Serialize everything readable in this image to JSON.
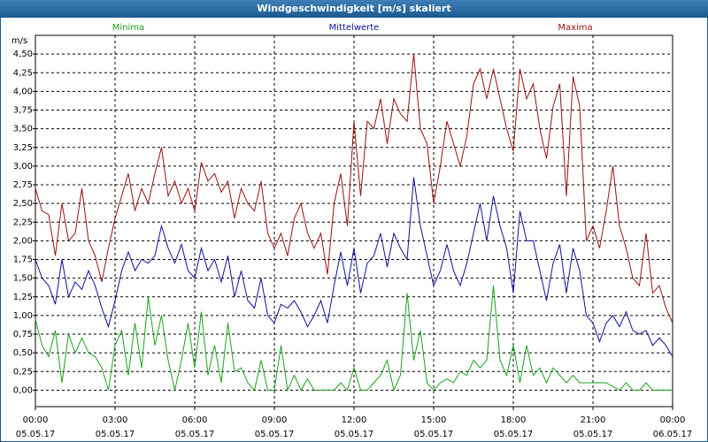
{
  "chart_data": {
    "type": "line",
    "title": "Windgeschwindigkeit [m/s] skaliert",
    "y_label": "m/s",
    "grid": true,
    "xlim": [
      0,
      24
    ],
    "xticks": [
      {
        "value": 0,
        "label": "00:00",
        "date": "05.05.17"
      },
      {
        "value": 3,
        "label": "03:00",
        "date": "05.05.17"
      },
      {
        "value": 6,
        "label": "06:00",
        "date": "05.05.17"
      },
      {
        "value": 9,
        "label": "09:00",
        "date": "05.05.17"
      },
      {
        "value": 12,
        "label": "12:00",
        "date": "05.05.17"
      },
      {
        "value": 15,
        "label": "15:00",
        "date": "05.05.17"
      },
      {
        "value": 18,
        "label": "18:00",
        "date": "05.05.17"
      },
      {
        "value": 21,
        "label": "21:00",
        "date": "05.05.17"
      },
      {
        "value": 24,
        "label": "00:00",
        "date": "06.05.17"
      }
    ],
    "ylim": [
      -0.22,
      4.75
    ],
    "yticks": [
      {
        "value": 0,
        "label": "0,00"
      },
      {
        "value": 0.25,
        "label": "0,25"
      },
      {
        "value": 0.5,
        "label": "0,50"
      },
      {
        "value": 0.75,
        "label": "0,75"
      },
      {
        "value": 1,
        "label": "1,00"
      },
      {
        "value": 1.25,
        "label": "1,25"
      },
      {
        "value": 1.5,
        "label": "1,50"
      },
      {
        "value": 1.75,
        "label": "1,75"
      },
      {
        "value": 2,
        "label": "2,00"
      },
      {
        "value": 2.25,
        "label": "2,25"
      },
      {
        "value": 2.5,
        "label": "2,50"
      },
      {
        "value": 2.75,
        "label": "2,75"
      },
      {
        "value": 3,
        "label": "3,00"
      },
      {
        "value": 3.25,
        "label": "3,25"
      },
      {
        "value": 3.5,
        "label": "3,50"
      },
      {
        "value": 3.75,
        "label": "3,75"
      },
      {
        "value": 4,
        "label": "4,00"
      },
      {
        "value": 4.25,
        "label": "4,25"
      },
      {
        "value": 4.5,
        "label": "4,50"
      }
    ],
    "x": [
      0,
      0.25,
      0.5,
      0.75,
      1,
      1.25,
      1.5,
      1.75,
      2,
      2.25,
      2.5,
      2.75,
      3,
      3.25,
      3.5,
      3.75,
      4,
      4.25,
      4.5,
      4.75,
      5,
      5.25,
      5.5,
      5.75,
      6,
      6.25,
      6.5,
      6.75,
      7,
      7.25,
      7.5,
      7.75,
      8,
      8.25,
      8.5,
      8.75,
      9,
      9.25,
      9.5,
      9.75,
      10,
      10.25,
      10.5,
      10.75,
      11,
      11.25,
      11.5,
      11.75,
      12,
      12.25,
      12.5,
      12.75,
      13,
      13.25,
      13.5,
      13.75,
      14,
      14.25,
      14.5,
      14.75,
      15,
      15.25,
      15.5,
      15.75,
      16,
      16.25,
      16.5,
      16.75,
      17,
      17.25,
      17.5,
      17.75,
      18,
      18.25,
      18.5,
      18.75,
      19,
      19.25,
      19.5,
      19.75,
      20,
      20.25,
      20.5,
      20.75,
      21,
      21.25,
      21.5,
      21.75,
      22,
      22.25,
      22.5,
      22.75,
      23,
      23.25,
      23.5,
      23.75,
      24
    ],
    "series": [
      {
        "name": "Minima",
        "color": "#1aa31a",
        "values": [
          0.95,
          0.6,
          0.45,
          0.8,
          0.1,
          0.75,
          0.5,
          0.7,
          0.5,
          0.45,
          0.3,
          0,
          0.6,
          0.8,
          0.2,
          0.9,
          0.3,
          1.25,
          0.6,
          1,
          0.4,
          0,
          0.4,
          0.9,
          0.3,
          1.05,
          0.2,
          0.6,
          0.1,
          0.9,
          0.25,
          0.3,
          0.1,
          0,
          0.4,
          0,
          0,
          0.6,
          0,
          0.2,
          0,
          0.15,
          0,
          0,
          0,
          0,
          0.1,
          0,
          0.3,
          0,
          0,
          0.1,
          0.2,
          0.4,
          0,
          0.2,
          1.3,
          0.4,
          0.8,
          0.1,
          0,
          0.1,
          0.15,
          0.1,
          0.25,
          0.2,
          0.4,
          0.3,
          0.4,
          1.4,
          0.4,
          0.2,
          0.6,
          0.1,
          0.6,
          0.2,
          0.3,
          0.1,
          0.3,
          0.2,
          0.1,
          0.2,
          0.1,
          0.1,
          0.1,
          0.1,
          0.1,
          0.05,
          0,
          0.1,
          0,
          0,
          0.1,
          0,
          0,
          0,
          0
        ]
      },
      {
        "name": "Mittelwerte",
        "color": "#10109a",
        "values": [
          1.75,
          1.5,
          1.4,
          1.15,
          1.75,
          1.25,
          1.45,
          1.35,
          1.6,
          1.4,
          1.1,
          0.85,
          1.2,
          1.6,
          1.85,
          1.6,
          1.75,
          1.7,
          1.8,
          2.2,
          1.9,
          1.7,
          1.95,
          1.6,
          1.5,
          1.9,
          1.6,
          1.75,
          1.45,
          1.8,
          1.25,
          1.6,
          1.2,
          1.1,
          1.5,
          1,
          0.9,
          1.15,
          1.1,
          1.2,
          1.05,
          0.85,
          1,
          1.2,
          0.9,
          1.4,
          1.85,
          1.4,
          1.9,
          1.3,
          1.7,
          1.8,
          2.1,
          1.65,
          2.1,
          1.9,
          1.75,
          2.85,
          2.2,
          1.8,
          1.4,
          1.6,
          1.95,
          1.6,
          1.4,
          1.7,
          2.1,
          2.5,
          2,
          2.6,
          2.2,
          1.9,
          1.3,
          2.4,
          2,
          2,
          1.6,
          1.2,
          1.7,
          1.95,
          1.3,
          1.9,
          1.6,
          1,
          0.9,
          0.65,
          0.9,
          1,
          0.85,
          1.05,
          0.8,
          0.75,
          0.8,
          0.6,
          0.7,
          0.6,
          0.45
        ]
      },
      {
        "name": "Maxima",
        "color": "#9a1010",
        "values": [
          2.7,
          2.4,
          2.35,
          1.8,
          2.5,
          2,
          2.1,
          2.7,
          2,
          1.8,
          1.45,
          1.9,
          2.3,
          2.6,
          2.9,
          2.4,
          2.7,
          2.5,
          2.9,
          3.25,
          2.6,
          2.8,
          2.5,
          2.7,
          2.4,
          3.05,
          2.8,
          2.9,
          2.65,
          2.8,
          2.3,
          2.7,
          2.5,
          2.4,
          2.8,
          2.1,
          1.9,
          2.1,
          1.8,
          2.3,
          2.5,
          2.1,
          1.9,
          2.1,
          1.55,
          2.5,
          2.9,
          2.2,
          3.6,
          2.6,
          3.6,
          3.5,
          3.9,
          3.3,
          3.9,
          3.7,
          3.6,
          4.5,
          3.5,
          3.3,
          2.5,
          3,
          3.6,
          3.3,
          3,
          3.4,
          4.1,
          4.3,
          3.9,
          4.3,
          3.9,
          3.5,
          3.2,
          4.3,
          3.9,
          4.1,
          3.5,
          3.1,
          3.8,
          4.1,
          2.6,
          4.2,
          3.8,
          2,
          2.2,
          1.9,
          2.4,
          3,
          2.2,
          1.9,
          1.5,
          1.4,
          2.1,
          1.3,
          1.4,
          1.1,
          0.9
        ]
      }
    ]
  }
}
